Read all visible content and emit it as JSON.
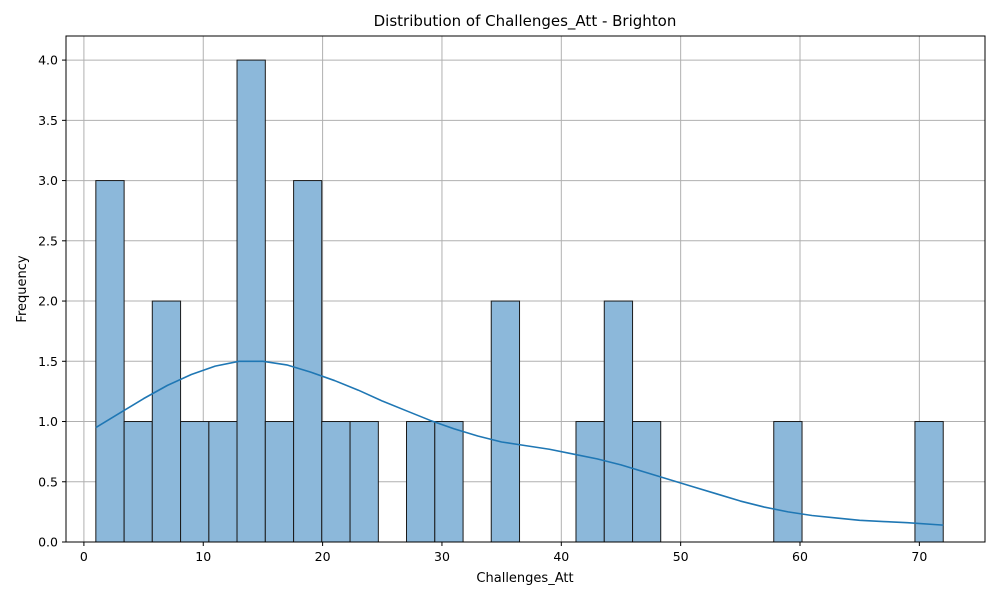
{
  "chart_data": {
    "type": "histogram",
    "title": "Distribution of Challenges_Att - Brighton",
    "xlabel": "Challenges_Att",
    "ylabel": "Frequency",
    "xlim": [
      -1.5,
      75.5
    ],
    "ylim": [
      0,
      4.2
    ],
    "xticks": [
      0,
      10,
      20,
      30,
      40,
      50,
      60,
      70
    ],
    "yticks": [
      0.0,
      0.5,
      1.0,
      1.5,
      2.0,
      2.5,
      3.0,
      3.5,
      4.0
    ],
    "ytick_labels": [
      "0.0",
      "0.5",
      "1.0",
      "1.5",
      "2.0",
      "2.5",
      "3.0",
      "3.5",
      "4.0"
    ],
    "grid": true,
    "bin_edges": [
      1.0,
      3.37,
      5.73,
      8.1,
      10.47,
      12.83,
      15.2,
      17.57,
      19.93,
      22.3,
      24.67,
      27.03,
      29.4,
      31.77,
      34.13,
      36.5,
      38.87,
      41.23,
      43.6,
      45.97,
      48.33,
      50.7,
      53.07,
      55.43,
      57.8,
      60.17,
      62.53,
      64.9,
      67.27,
      69.63,
      72.0
    ],
    "counts": [
      3,
      1,
      2,
      1,
      1,
      4,
      1,
      3,
      1,
      1,
      0,
      1,
      1,
      0,
      2,
      0,
      0,
      1,
      2,
      1,
      0,
      0,
      0,
      0,
      1,
      0,
      0,
      0,
      0,
      1
    ],
    "kde": {
      "x": [
        1,
        3,
        5,
        7,
        9,
        11,
        13,
        15,
        17,
        19,
        21,
        23,
        25,
        27,
        29,
        31,
        33,
        35,
        37,
        39,
        41,
        43,
        45,
        47,
        49,
        51,
        53,
        55,
        57,
        59,
        61,
        63,
        65,
        67,
        69,
        72
      ],
      "y": [
        0.95,
        1.07,
        1.19,
        1.3,
        1.39,
        1.46,
        1.5,
        1.5,
        1.47,
        1.41,
        1.34,
        1.26,
        1.17,
        1.09,
        1.01,
        0.94,
        0.88,
        0.83,
        0.8,
        0.77,
        0.73,
        0.69,
        0.64,
        0.58,
        0.52,
        0.46,
        0.4,
        0.34,
        0.29,
        0.25,
        0.22,
        0.2,
        0.18,
        0.17,
        0.16,
        0.14
      ]
    },
    "colors": {
      "bar_fill": "#8cb8da",
      "bar_edge": "#1a1a1a",
      "kde_line": "#1f77b4",
      "grid": "#b0b0b0"
    }
  }
}
